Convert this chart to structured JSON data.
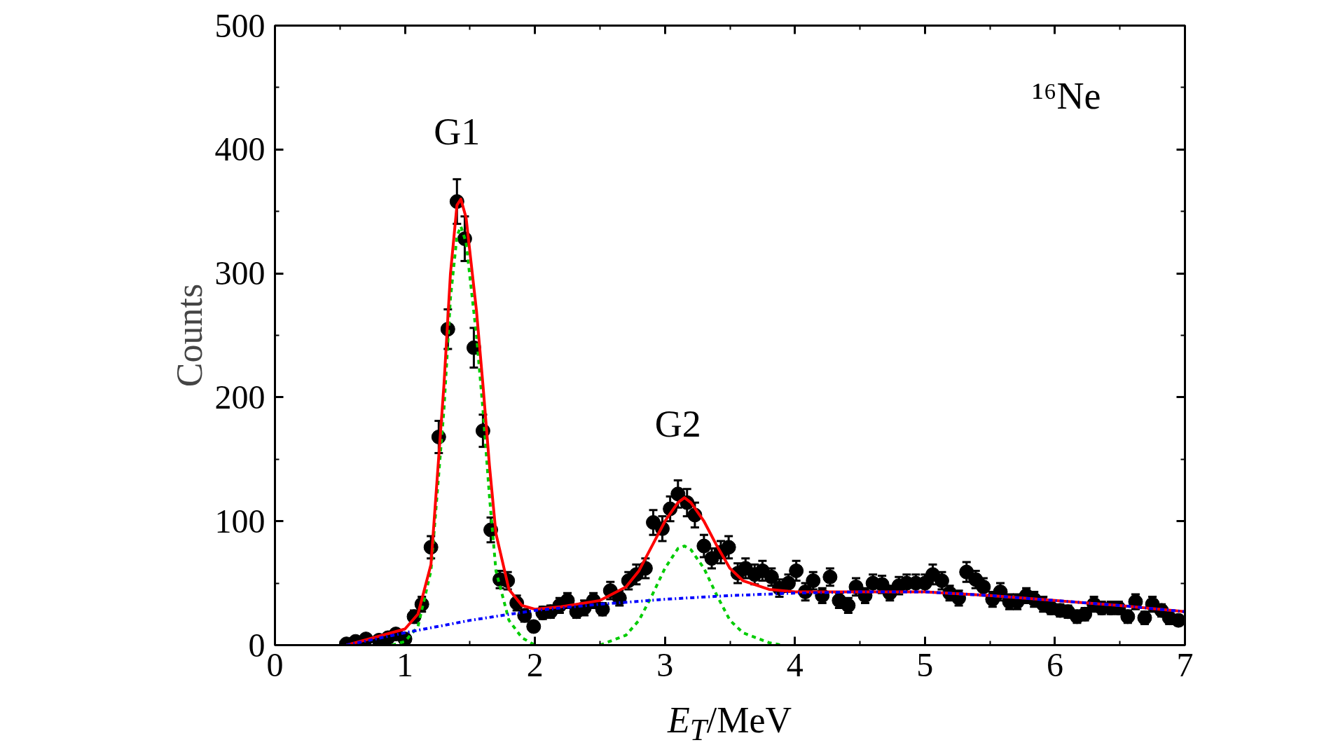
{
  "chart_data": {
    "type": "scatter",
    "xlabel": "E$_{T}$/MeV",
    "ylabel": "Counts",
    "xlim": [
      0,
      7
    ],
    "ylim": [
      0,
      500
    ],
    "xticks": [
      0,
      1,
      2,
      3,
      4,
      5,
      6,
      7
    ],
    "yticks": [
      0,
      100,
      200,
      300,
      400,
      500
    ],
    "grid": false,
    "annotations": [
      {
        "text": "G1",
        "x": 1.4,
        "y": 358
      },
      {
        "text": "G2",
        "x": 3.1,
        "y": 122
      },
      "¹⁶Ne"
    ],
    "series": [
      {
        "color": "#000000",
        "marker": "circle",
        "x": [
          0.55,
          0.62,
          0.7,
          0.8,
          0.87,
          0.93,
          1.0,
          1.07,
          1.13,
          1.2,
          1.26,
          1.33,
          1.4,
          1.46,
          1.53,
          1.6,
          1.66,
          1.73,
          1.79,
          1.86,
          1.92,
          1.99,
          2.06,
          2.12,
          2.19,
          2.25,
          2.32,
          2.38,
          2.45,
          2.52,
          2.58,
          2.65,
          2.72,
          2.78,
          2.85,
          2.91,
          2.98,
          3.04,
          3.1,
          3.17,
          3.23,
          3.3,
          3.36,
          3.43,
          3.49,
          3.56,
          3.62,
          3.69,
          3.75,
          3.82,
          3.88,
          3.95,
          4.01,
          4.08,
          4.14,
          4.21,
          4.27,
          4.34,
          4.41,
          4.47,
          4.54,
          4.6,
          4.67,
          4.73,
          4.8,
          4.86,
          4.93,
          5.0,
          5.06,
          5.13,
          5.19,
          5.26,
          5.32,
          5.39,
          5.45,
          5.52,
          5.58,
          5.65,
          5.71,
          5.78,
          5.84,
          5.91,
          5.97,
          6.04,
          6.1,
          6.17,
          6.23,
          6.3,
          6.36,
          6.43,
          6.49,
          6.56,
          6.62,
          6.69,
          6.75,
          6.82,
          6.88,
          6.95
        ],
        "values": [
          1,
          3,
          5,
          4,
          6,
          9,
          5,
          23,
          33,
          79,
          168,
          255,
          358,
          328,
          240,
          173,
          93,
          53,
          52,
          34,
          24,
          15,
          26,
          27,
          32,
          36,
          27,
          30,
          36,
          29,
          44,
          38,
          52,
          57,
          62,
          99,
          94,
          110,
          122,
          115,
          105,
          80,
          70,
          75,
          79,
          58,
          62,
          57,
          60,
          55,
          46,
          50,
          60,
          43,
          52,
          40,
          55,
          36,
          32,
          47,
          40,
          50,
          49,
          42,
          48,
          50,
          50,
          50,
          57,
          52,
          42,
          38,
          59,
          53,
          47,
          37,
          43,
          35,
          35,
          40,
          37,
          33,
          30,
          28,
          27,
          23,
          25,
          33,
          30,
          30,
          30,
          23,
          35,
          22,
          33,
          28,
          22,
          20
        ],
        "errors": [
          2,
          2,
          3,
          2,
          3,
          3,
          2,
          5,
          6,
          9,
          13,
          16,
          18,
          18,
          16,
          13,
          10,
          7,
          7,
          6,
          5,
          4,
          5,
          5,
          6,
          6,
          5,
          6,
          6,
          5,
          7,
          6,
          7,
          8,
          8,
          10,
          10,
          10,
          11,
          11,
          10,
          9,
          8,
          9,
          9,
          8,
          8,
          8,
          8,
          7,
          7,
          7,
          8,
          7,
          7,
          6,
          7,
          6,
          6,
          7,
          6,
          7,
          7,
          6,
          7,
          7,
          7,
          7,
          8,
          7,
          6,
          6,
          8,
          7,
          7,
          6,
          7,
          6,
          6,
          6,
          6,
          6,
          5,
          5,
          5,
          5,
          5,
          6,
          5,
          5,
          5,
          5,
          6,
          5,
          6,
          5,
          5,
          4
        ]
      },
      {
        "type": "line",
        "color": "#00cc00",
        "line_style": "dashed",
        "x": [
          0.9,
          1.0,
          1.1,
          1.2,
          1.3,
          1.35,
          1.4,
          1.43,
          1.47,
          1.55,
          1.6,
          1.65,
          1.7,
          1.8,
          1.9,
          2.0
        ],
        "values": [
          0,
          3,
          15,
          60,
          190,
          280,
          330,
          338,
          325,
          250,
          190,
          120,
          60,
          20,
          6,
          0
        ]
      },
      {
        "type": "line",
        "color": "#00cc00",
        "line_style": "dashed",
        "x": [
          2.5,
          2.7,
          2.8,
          2.9,
          3.0,
          3.1,
          3.15,
          3.2,
          3.3,
          3.4,
          3.5,
          3.6,
          3.8,
          3.9
        ],
        "values": [
          0,
          8,
          20,
          40,
          62,
          78,
          80,
          77,
          62,
          40,
          20,
          10,
          2,
          0
        ]
      },
      {
        "type": "line",
        "color": "#ff0000",
        "line_style": "solid",
        "x": [
          0.55,
          1.0,
          1.1,
          1.2,
          1.3,
          1.35,
          1.4,
          1.43,
          1.47,
          1.55,
          1.6,
          1.65,
          1.7,
          1.8,
          1.9,
          2.0,
          2.2,
          2.5,
          2.7,
          2.8,
          2.9,
          3.0,
          3.1,
          3.15,
          3.2,
          3.3,
          3.4,
          3.5,
          3.6,
          3.8,
          4.0,
          4.5,
          5.0,
          5.5,
          6.0,
          6.5,
          7.0
        ],
        "values": [
          0,
          13,
          25,
          65,
          210,
          300,
          355,
          360,
          345,
          270,
          210,
          145,
          90,
          45,
          32,
          29,
          31,
          36,
          47,
          60,
          80,
          100,
          115,
          119,
          115,
          100,
          80,
          62,
          52,
          45,
          43,
          43,
          43,
          40,
          36,
          32,
          27
        ]
      },
      {
        "type": "line",
        "color": "#0000ff",
        "line_style": "dashdot",
        "x": [
          0.55,
          1.0,
          1.5,
          2.0,
          2.5,
          3.0,
          3.5,
          4.0,
          4.5,
          5.0,
          5.5,
          6.0,
          6.5,
          7.0
        ],
        "values": [
          0,
          10,
          20,
          28,
          33,
          37,
          40,
          42,
          43,
          43,
          40,
          36,
          32,
          27
        ]
      }
    ]
  }
}
